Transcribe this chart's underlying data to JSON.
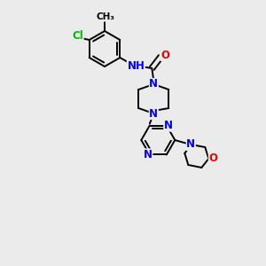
{
  "bg_color": "#ebebeb",
  "bond_color": "#000000",
  "bond_width": 1.4,
  "atom_colors": {
    "N": "#0000ee",
    "O": "#ee0000",
    "Cl": "#00bb00",
    "C": "#000000",
    "H": "#888888"
  },
  "font_size": 8.5,
  "font_size_small": 7.5
}
